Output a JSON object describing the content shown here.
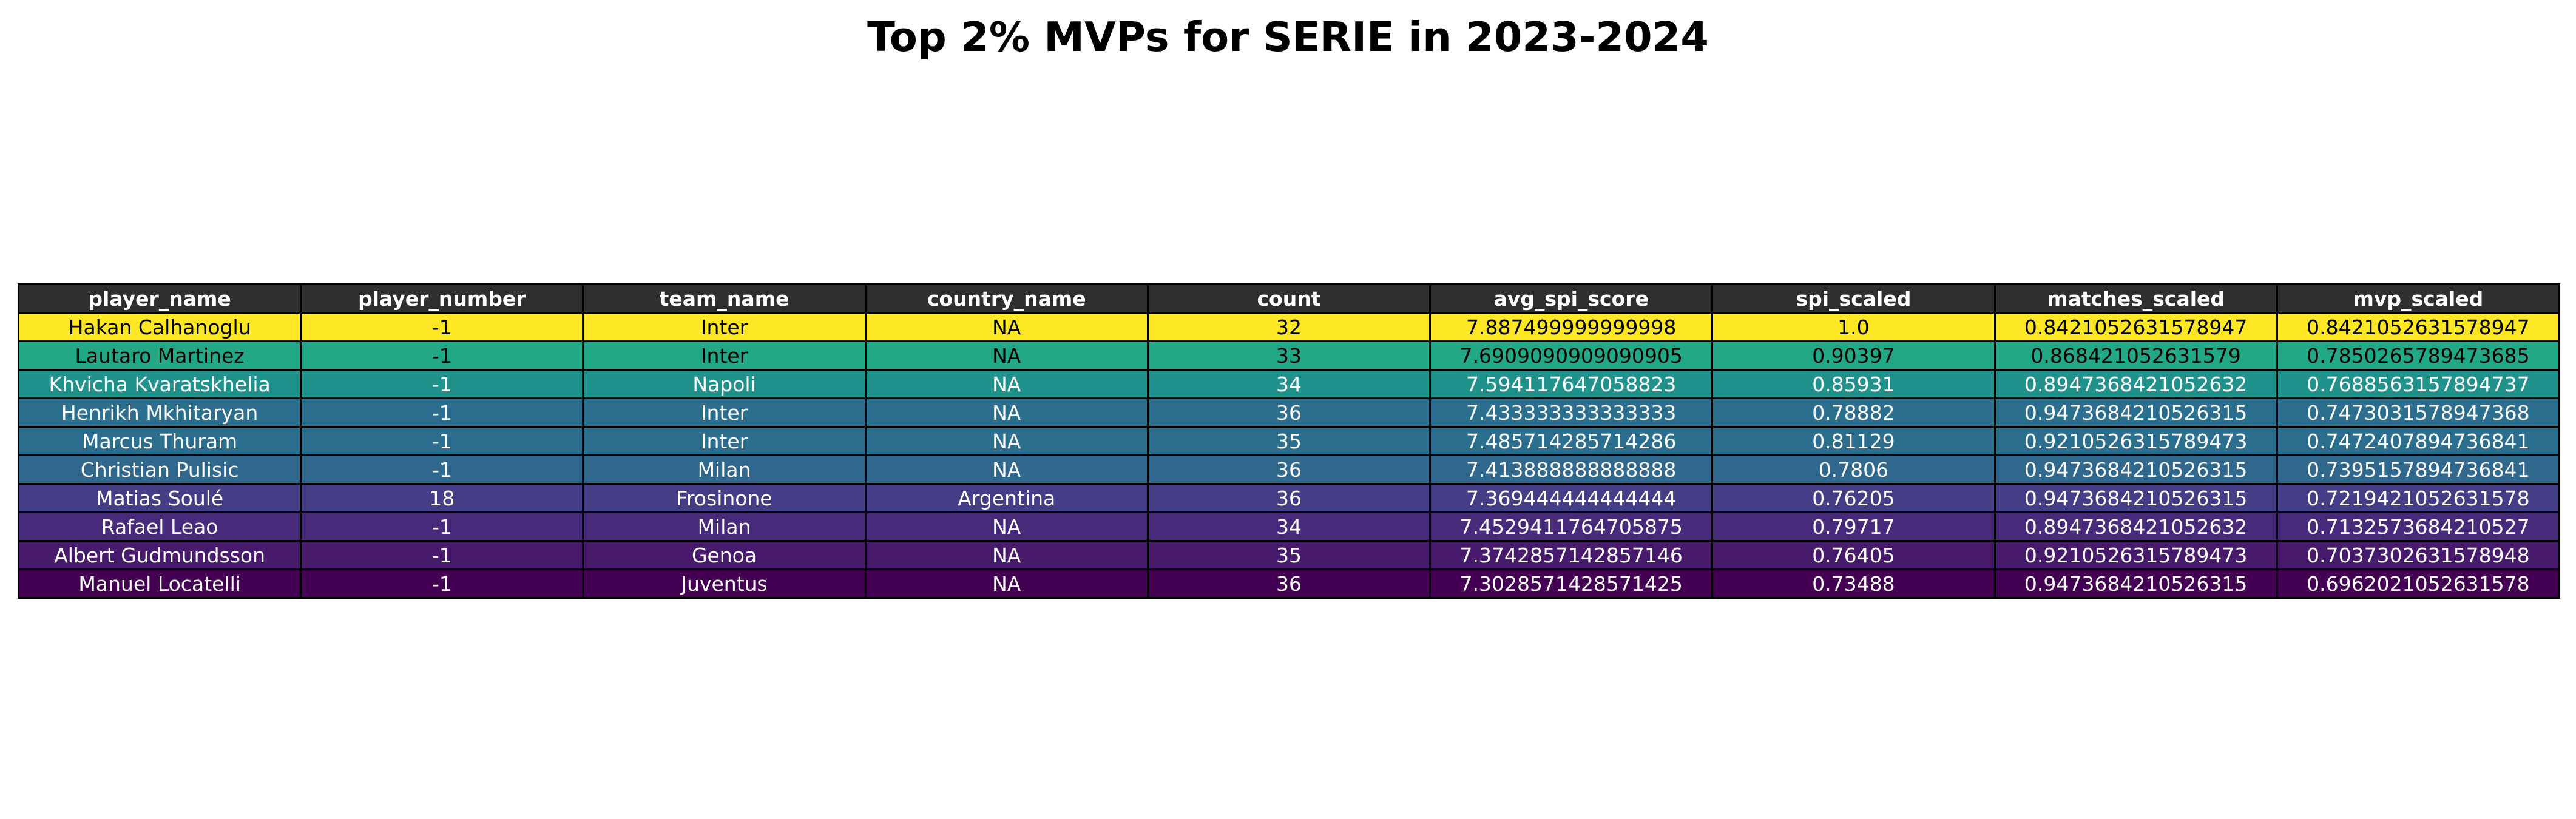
{
  "chart_data": {
    "type": "table",
    "title": "Top 2% MVPs for SERIE in 2023-2024",
    "columns": [
      "player_name",
      "player_number",
      "team_name",
      "country_name",
      "count",
      "avg_spi_score",
      "spi_scaled",
      "matches_scaled",
      "mvp_scaled"
    ],
    "header_color": "#2f2f2f",
    "header_text_color": "#ffffff",
    "rows": [
      {
        "cells": [
          "Hakan Calhanoglu",
          "-1",
          "Inter",
          "NA",
          "32",
          "7.887499999999998",
          "1.0",
          "0.8421052631578947",
          "0.8421052631578947"
        ],
        "color": "#fde725",
        "text_color": "#000000"
      },
      {
        "cells": [
          "Lautaro Martinez",
          "-1",
          "Inter",
          "NA",
          "33",
          "7.6909090909090905",
          "0.90397",
          "0.868421052631579",
          "0.7850265789473685"
        ],
        "color": "#22a884",
        "text_color": "#000000"
      },
      {
        "cells": [
          "Khvicha Kvaratskhelia",
          "-1",
          "Napoli",
          "NA",
          "34",
          "7.594117647058823",
          "0.85931",
          "0.8947368421052632",
          "0.7688563157894737"
        ],
        "color": "#21918c",
        "text_color": "#ffffff"
      },
      {
        "cells": [
          "Henrikh Mkhitaryan",
          "-1",
          "Inter",
          "NA",
          "36",
          "7.433333333333333",
          "0.78882",
          "0.9473684210526315",
          "0.7473031578947368"
        ],
        "color": "#2c6e8e",
        "text_color": "#ffffff"
      },
      {
        "cells": [
          "Marcus Thuram",
          "-1",
          "Inter",
          "NA",
          "35",
          "7.485714285714286",
          "0.81129",
          "0.9210526315789473",
          "0.7472407894736841"
        ],
        "color": "#2c6e8e",
        "text_color": "#ffffff"
      },
      {
        "cells": [
          "Christian Pulisic",
          "-1",
          "Milan",
          "NA",
          "36",
          "7.413888888888888",
          "0.7806",
          "0.9473684210526315",
          "0.7395157894736841"
        ],
        "color": "#30678d",
        "text_color": "#ffffff"
      },
      {
        "cells": [
          "Matias Soulé",
          "18",
          "Frosinone",
          "Argentina",
          "36",
          "7.369444444444444",
          "0.76205",
          "0.9473684210526315",
          "0.7219421052631578"
        ],
        "color": "#433e85",
        "text_color": "#ffffff"
      },
      {
        "cells": [
          "Rafael Leao",
          "-1",
          "Milan",
          "NA",
          "34",
          "7.4529411764705875",
          "0.79717",
          "0.8947368421052632",
          "0.7132573684210527"
        ],
        "color": "#472a7a",
        "text_color": "#ffffff"
      },
      {
        "cells": [
          "Albert Gudmundsson",
          "-1",
          "Genoa",
          "NA",
          "35",
          "7.3742857142857146",
          "0.76405",
          "0.9210526315789473",
          "0.7037302631578948"
        ],
        "color": "#481a6c",
        "text_color": "#ffffff"
      },
      {
        "cells": [
          "Manuel Locatelli",
          "-1",
          "Juventus",
          "NA",
          "36",
          "7.3028571428571425",
          "0.73488",
          "0.9473684210526315",
          "0.6962021052631578"
        ],
        "color": "#440154",
        "text_color": "#ffffff"
      }
    ]
  }
}
